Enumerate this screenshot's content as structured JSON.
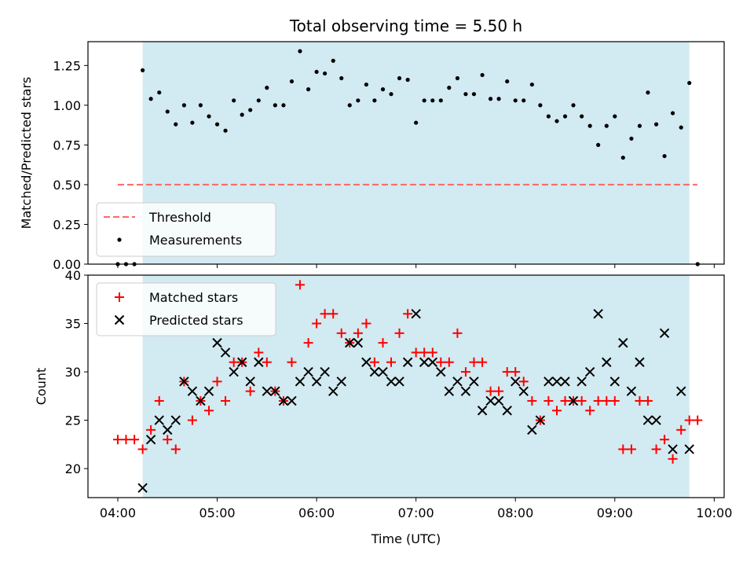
{
  "chart_data": {
    "type": "scatter",
    "title": "Total observing time = 5.50 h",
    "xlabel": "Time (UTC)",
    "x_unit": "hours UTC",
    "xlim": [
      3.7,
      10.1
    ],
    "x_ticks": [
      4,
      5,
      6,
      7,
      8,
      9,
      10
    ],
    "x_tick_labels": [
      "04:00",
      "05:00",
      "06:00",
      "07:00",
      "08:00",
      "09:00",
      "10:00"
    ],
    "shaded_span": [
      4.25,
      9.75
    ],
    "shade_color": "#add8e6",
    "top_panel": {
      "ylabel": "Matched/Predicted stars",
      "ylim": [
        0,
        1.4
      ],
      "y_ticks": [
        0.0,
        0.25,
        0.5,
        0.75,
        1.0,
        1.25
      ],
      "y_tick_labels": [
        "0.00",
        "0.25",
        "0.50",
        "0.75",
        "1.00",
        "1.25"
      ],
      "threshold": {
        "name": "Threshold",
        "value": 0.5,
        "x_range": [
          4.0,
          9.83
        ],
        "color": "#ff6666"
      },
      "measurements": {
        "name": "Measurements",
        "color": "#000000",
        "x": [
          4.0,
          4.083,
          4.167,
          4.25,
          4.333,
          4.417,
          4.5,
          4.583,
          4.667,
          4.75,
          4.833,
          4.917,
          5.0,
          5.083,
          5.167,
          5.25,
          5.333,
          5.417,
          5.5,
          5.583,
          5.667,
          5.75,
          5.833,
          5.917,
          6.0,
          6.083,
          6.167,
          6.25,
          6.333,
          6.417,
          6.5,
          6.583,
          6.667,
          6.75,
          6.833,
          6.917,
          7.0,
          7.083,
          7.167,
          7.25,
          7.333,
          7.417,
          7.5,
          7.583,
          7.667,
          7.75,
          7.833,
          7.917,
          8.0,
          8.083,
          8.167,
          8.25,
          8.333,
          8.417,
          8.5,
          8.583,
          8.667,
          8.75,
          8.833,
          8.917,
          9.0,
          9.083,
          9.167,
          9.25,
          9.333,
          9.417,
          9.5,
          9.583,
          9.667,
          9.75,
          9.833
        ],
        "y": [
          0.0,
          0.0,
          0.0,
          1.22,
          1.04,
          1.08,
          0.96,
          0.88,
          1.0,
          0.89,
          1.0,
          0.93,
          0.88,
          0.84,
          1.03,
          0.94,
          0.97,
          1.03,
          1.11,
          1.0,
          1.0,
          1.15,
          1.34,
          1.1,
          1.21,
          1.2,
          1.28,
          1.17,
          1.0,
          1.03,
          1.13,
          1.03,
          1.1,
          1.07,
          1.17,
          1.16,
          0.89,
          1.03,
          1.03,
          1.03,
          1.11,
          1.17,
          1.07,
          1.07,
          1.19,
          1.04,
          1.04,
          1.15,
          1.03,
          1.03,
          1.13,
          1.0,
          0.93,
          0.9,
          0.93,
          1.0,
          0.93,
          0.87,
          0.75,
          0.87,
          0.93,
          0.67,
          0.79,
          0.87,
          1.08,
          0.88,
          0.68,
          0.95,
          0.86,
          1.14,
          0.0
        ]
      }
    },
    "bottom_panel": {
      "ylabel": "Count",
      "ylim": [
        17,
        40
      ],
      "y_ticks": [
        20,
        25,
        30,
        35,
        40
      ],
      "y_tick_labels": [
        "20",
        "25",
        "30",
        "35",
        "40"
      ],
      "series": [
        {
          "name": "Matched stars",
          "marker": "plus",
          "color": "#ff0000",
          "x": [
            4.0,
            4.083,
            4.167,
            4.25,
            4.333,
            4.417,
            4.5,
            4.583,
            4.667,
            4.75,
            4.833,
            4.917,
            5.0,
            5.083,
            5.167,
            5.25,
            5.333,
            5.417,
            5.5,
            5.583,
            5.667,
            5.75,
            5.833,
            5.917,
            6.0,
            6.083,
            6.167,
            6.25,
            6.333,
            6.417,
            6.5,
            6.583,
            6.667,
            6.75,
            6.833,
            6.917,
            7.0,
            7.083,
            7.167,
            7.25,
            7.333,
            7.417,
            7.5,
            7.583,
            7.667,
            7.75,
            7.833,
            7.917,
            8.0,
            8.083,
            8.167,
            8.25,
            8.333,
            8.417,
            8.5,
            8.583,
            8.667,
            8.75,
            8.833,
            8.917,
            9.0,
            9.083,
            9.167,
            9.25,
            9.333,
            9.417,
            9.5,
            9.583,
            9.667,
            9.75,
            9.833
          ],
          "y": [
            23,
            23,
            23,
            22,
            24,
            27,
            23,
            22,
            29,
            25,
            27,
            26,
            29,
            27,
            31,
            31,
            28,
            32,
            31,
            28,
            27,
            31,
            39,
            33,
            35,
            36,
            36,
            34,
            33,
            34,
            35,
            31,
            33,
            31,
            34,
            36,
            32,
            32,
            32,
            31,
            31,
            34,
            30,
            31,
            31,
            28,
            28,
            30,
            30,
            29,
            27,
            25,
            27,
            26,
            27,
            27,
            27,
            26,
            27,
            27,
            27,
            22,
            22,
            27,
            27,
            22,
            23,
            21,
            24,
            25,
            25
          ]
        },
        {
          "name": "Predicted stars",
          "marker": "x",
          "color": "#000000",
          "x": [
            4.25,
            4.333,
            4.417,
            4.5,
            4.583,
            4.667,
            4.75,
            4.833,
            4.917,
            5.0,
            5.083,
            5.167,
            5.25,
            5.333,
            5.417,
            5.5,
            5.583,
            5.667,
            5.75,
            5.833,
            5.917,
            6.0,
            6.083,
            6.167,
            6.25,
            6.333,
            6.417,
            6.5,
            6.583,
            6.667,
            6.75,
            6.833,
            6.917,
            7.0,
            7.083,
            7.167,
            7.25,
            7.333,
            7.417,
            7.5,
            7.583,
            7.667,
            7.75,
            7.833,
            7.917,
            8.0,
            8.083,
            8.167,
            8.25,
            8.333,
            8.417,
            8.5,
            8.583,
            8.667,
            8.75,
            8.833,
            8.917,
            9.0,
            9.083,
            9.167,
            9.25,
            9.333,
            9.417,
            9.5,
            9.583,
            9.667,
            9.75
          ],
          "y": [
            18,
            23,
            25,
            24,
            25,
            29,
            28,
            27,
            28,
            33,
            32,
            30,
            31,
            29,
            31,
            28,
            28,
            27,
            27,
            29,
            30,
            29,
            30,
            28,
            29,
            33,
            33,
            31,
            30,
            30,
            29,
            29,
            31,
            36,
            31,
            31,
            30,
            28,
            29,
            28,
            29,
            26,
            27,
            27,
            26,
            29,
            28,
            24,
            25,
            29,
            29,
            29,
            27,
            29,
            30,
            36,
            31,
            29,
            33,
            28,
            31,
            25,
            25,
            34,
            22,
            28,
            22
          ]
        }
      ]
    },
    "legend_top": {
      "position": "lower-left"
    },
    "legend_bottom": {
      "position": "upper-left"
    }
  }
}
